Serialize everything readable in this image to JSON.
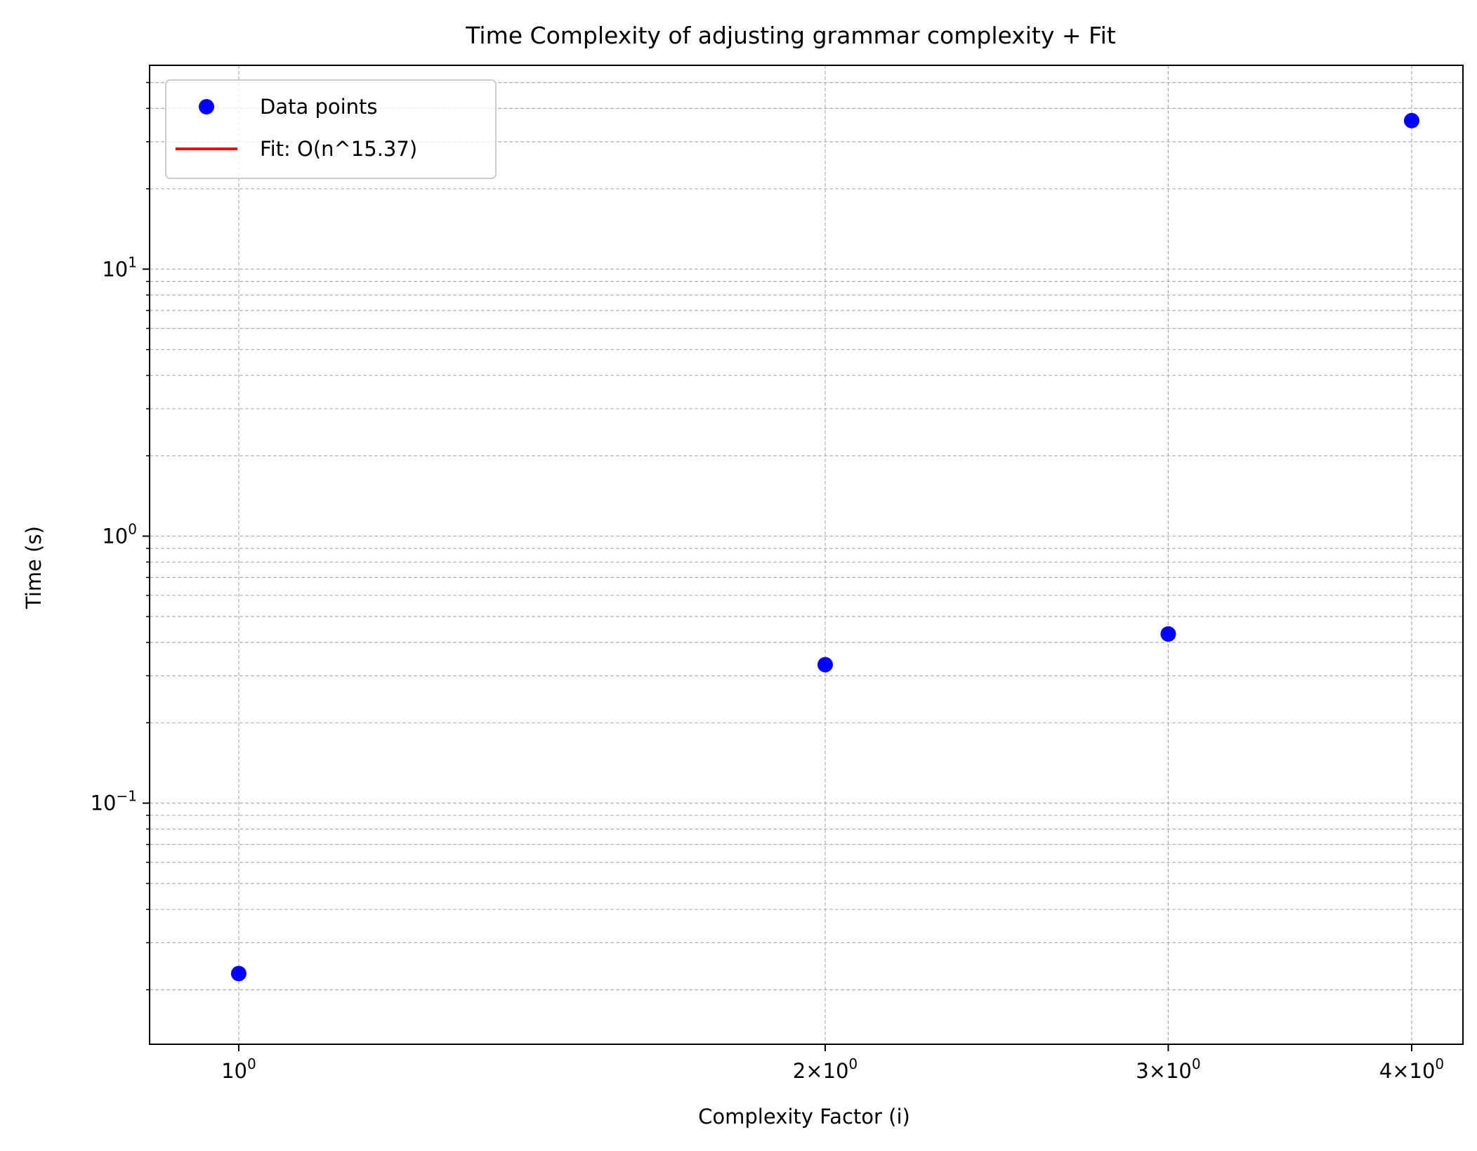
{
  "chart_data": {
    "type": "scatter",
    "title": "Time Complexity of adjusting grammar complexity + Fit",
    "xlabel": "Complexity Factor (i)",
    "ylabel": "Time (s)",
    "xscale": "log",
    "yscale": "log",
    "xlim": [
      0.9,
      4.25
    ],
    "ylim": [
      0.0125,
      58
    ],
    "grid": true,
    "legend_position": "top-left",
    "x_ticks": [
      {
        "value": 1,
        "mantissa": "",
        "exponent": "0"
      },
      {
        "value": 2,
        "mantissa": "2×",
        "exponent": "0"
      },
      {
        "value": 3,
        "mantissa": "3×",
        "exponent": "0"
      },
      {
        "value": 4,
        "mantissa": "4×",
        "exponent": "0"
      }
    ],
    "y_ticks": [
      {
        "value": 10,
        "exponent": "1"
      },
      {
        "value": 1,
        "exponent": "0"
      },
      {
        "value": 0.1,
        "exponent": "−1"
      }
    ],
    "tick_base": "10",
    "series": [
      {
        "name": "Data points",
        "kind": "scatter",
        "color": "#0000ff",
        "x": [
          1,
          2,
          3,
          4
        ],
        "y": [
          0.023,
          0.33,
          0.43,
          36
        ]
      },
      {
        "name": "Fit: O(n^15.37)",
        "kind": "line",
        "color": "#ff0000",
        "x": [],
        "y": []
      }
    ]
  }
}
